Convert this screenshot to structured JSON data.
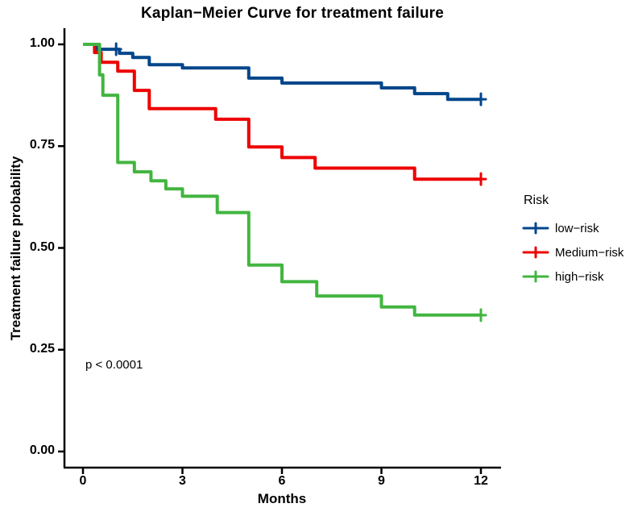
{
  "title": "Kaplan−Meier Curve for treatment failure",
  "p_value": "p < 0.0001",
  "legend": {
    "title": "Risk",
    "entries": [
      {
        "label": "low−risk",
        "color": "#00468B"
      },
      {
        "label": "Medium−risk",
        "color": "#ED0000"
      },
      {
        "label": "high−risk",
        "color": "#42B540"
      }
    ]
  },
  "colors": {
    "axis": "#000000",
    "background": "#ffffff"
  },
  "chart_data": {
    "type": "line",
    "subtype": "kaplan-meier-step",
    "title": "Kaplan−Meier Curve for treatment failure",
    "xlabel": "Months",
    "ylabel": "Treatment failure probability",
    "xlim": [
      0,
      12.6
    ],
    "ylim": [
      0,
      1.0
    ],
    "grid": "off",
    "legend_position": "right",
    "annotation": "p < 0.0001",
    "xticks": [
      0,
      3,
      6,
      9,
      12
    ],
    "xtick_labels": [
      "0",
      "3",
      "6",
      "9",
      "12"
    ],
    "yticks": [
      1.0,
      0.75,
      0.5,
      0.25,
      0.0
    ],
    "ytick_labels": [
      "1.00",
      "0.75",
      "0.50",
      "0.25",
      "0.00"
    ],
    "series": [
      {
        "name": "low-risk",
        "color": "#00468B",
        "steps": [
          [
            0,
            1.0
          ],
          [
            0.4,
            0.988
          ],
          [
            1.1,
            0.978
          ],
          [
            1.5,
            0.968
          ],
          [
            2,
            0.95
          ],
          [
            3,
            0.942
          ],
          [
            5,
            0.917
          ],
          [
            6,
            0.905
          ],
          [
            9,
            0.893
          ],
          [
            10,
            0.879
          ],
          [
            11,
            0.865
          ],
          [
            12,
            0.865
          ]
        ],
        "censored": [
          [
            1.0,
            0.988
          ],
          [
            12,
            0.865
          ]
        ]
      },
      {
        "name": "Medium-risk",
        "color": "#ED0000",
        "steps": [
          [
            0,
            1.0
          ],
          [
            0.35,
            0.98
          ],
          [
            0.55,
            0.956
          ],
          [
            1.05,
            0.934
          ],
          [
            1.55,
            0.887
          ],
          [
            2,
            0.842
          ],
          [
            4,
            0.816
          ],
          [
            5,
            0.748
          ],
          [
            6,
            0.722
          ],
          [
            7,
            0.696
          ],
          [
            10,
            0.669
          ],
          [
            12,
            0.669
          ]
        ],
        "censored": [
          [
            12,
            0.669
          ]
        ]
      },
      {
        "name": "high-risk",
        "color": "#42B540",
        "steps": [
          [
            0,
            1.0
          ],
          [
            0.5,
            0.925
          ],
          [
            0.6,
            0.875
          ],
          [
            1.05,
            0.71
          ],
          [
            1.55,
            0.687
          ],
          [
            2.05,
            0.665
          ],
          [
            2.5,
            0.645
          ],
          [
            3,
            0.627
          ],
          [
            4.05,
            0.587
          ],
          [
            5,
            0.458
          ],
          [
            6,
            0.417
          ],
          [
            7.05,
            0.382
          ],
          [
            9,
            0.355
          ],
          [
            10,
            0.335
          ],
          [
            12,
            0.335
          ]
        ],
        "censored": [
          [
            12,
            0.335
          ]
        ]
      }
    ]
  }
}
